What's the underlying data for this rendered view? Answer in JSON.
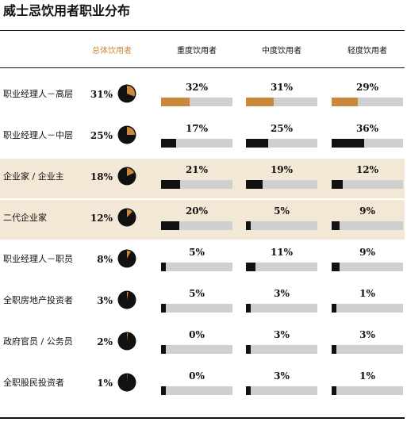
{
  "title": "威士忌饮用者职业分布",
  "headers": {
    "total": "总体饮用者",
    "columns": [
      "重度饮用者",
      "中度饮用者",
      "轻度饮用者"
    ]
  },
  "colors": {
    "accent": "#c9883a",
    "dark": "#111111",
    "track": "#cfcfcf",
    "highlight_bg": "#f3e8d6"
  },
  "chart_data": {
    "type": "table",
    "title": "威士忌饮用者职业分布",
    "columns": [
      "总体饮用者",
      "重度饮用者",
      "中度饮用者",
      "轻度饮用者"
    ],
    "rows": [
      {
        "label": "职业经理人－高层",
        "total": 31,
        "values": [
          32,
          31,
          29
        ],
        "total_text": "31%",
        "value_text": [
          "32%",
          "31%",
          "29%"
        ],
        "accent": true,
        "highlight": false
      },
      {
        "label": "职业经理人－中层",
        "total": 25,
        "values": [
          17,
          25,
          36
        ],
        "total_text": "25%",
        "value_text": [
          "17%",
          "25%",
          "36%"
        ],
        "accent": false,
        "highlight": false
      },
      {
        "label": "企业家 / 企业主",
        "total": 18,
        "values": [
          21,
          19,
          12
        ],
        "total_text": "18%",
        "value_text": [
          "21%",
          "19%",
          "12%"
        ],
        "accent": false,
        "highlight": true
      },
      {
        "label": "二代企业家",
        "total": 12,
        "values": [
          20,
          5,
          9
        ],
        "total_text": "12%",
        "value_text": [
          "20%",
          "5%",
          "9%"
        ],
        "accent": false,
        "highlight": true
      },
      {
        "label": "职业经理人－职员",
        "total": 8,
        "values": [
          5,
          11,
          9
        ],
        "total_text": "8%",
        "value_text": [
          "5%",
          "11%",
          "9%"
        ],
        "accent": false,
        "highlight": false
      },
      {
        "label": "全职房地产投资者",
        "total": 3,
        "values": [
          5,
          3,
          1
        ],
        "total_text": "3%",
        "value_text": [
          "5%",
          "3%",
          "1%"
        ],
        "accent": false,
        "highlight": false
      },
      {
        "label": "政府官员 / 公务员",
        "total": 2,
        "values": [
          0,
          3,
          3
        ],
        "total_text": "2%",
        "value_text": [
          "0%",
          "3%",
          "3%"
        ],
        "accent": false,
        "highlight": false
      },
      {
        "label": "全职股民投资者",
        "total": 1,
        "values": [
          0,
          3,
          1
        ],
        "total_text": "1%",
        "value_text": [
          "0%",
          "3%",
          "1%"
        ],
        "accent": false,
        "highlight": false
      }
    ],
    "bar_scale_max": 80
  }
}
